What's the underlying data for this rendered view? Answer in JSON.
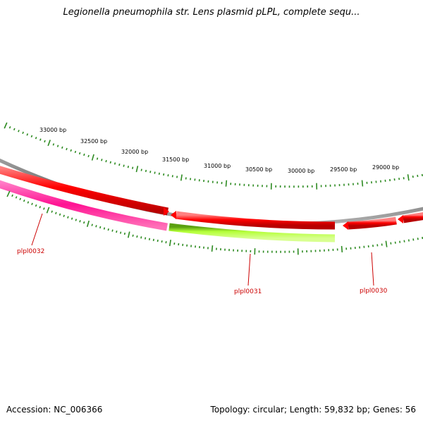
{
  "header": {
    "title": "Legionella pneumophila str. Lens plasmid pLPL, complete sequ..."
  },
  "footer": {
    "accession": "Accession: NC_006366",
    "summary": "Topology: circular; Length: 59,832 bp; Genes: 56"
  },
  "plasmid": {
    "length_bp": 59832,
    "view_range_bp": [
      28500,
      33500
    ]
  },
  "ruler": {
    "labels": [
      "33000 bp",
      "32500 bp",
      "32000 bp",
      "31500 bp",
      "31000 bp",
      "30500 bp",
      "30000 bp",
      "29500 bp",
      "29000 bp"
    ],
    "major_positions_bp": [
      33000,
      32500,
      32000,
      31500,
      31000,
      30500,
      30000,
      29500,
      29000
    ],
    "tick_color": "#2e8b22"
  },
  "genes": [
    {
      "id": "plpl0032",
      "label": "plpl0032",
      "strand": "forward",
      "color": "#ff1493",
      "label_color": "#cc0000"
    },
    {
      "id": "plpl0031",
      "label": "plpl0031",
      "strand": "forward",
      "color": "#adff2f",
      "label_color": "#cc0000"
    },
    {
      "id": "plpl0030",
      "label": "plpl0030",
      "strand": "forward",
      "color": "#ff0000",
      "label_color": "#cc0000"
    }
  ],
  "colors": {
    "backbone": "#8a8a8a",
    "outer_gene_track": "#ff0000",
    "ticks": "#2e8b22"
  }
}
